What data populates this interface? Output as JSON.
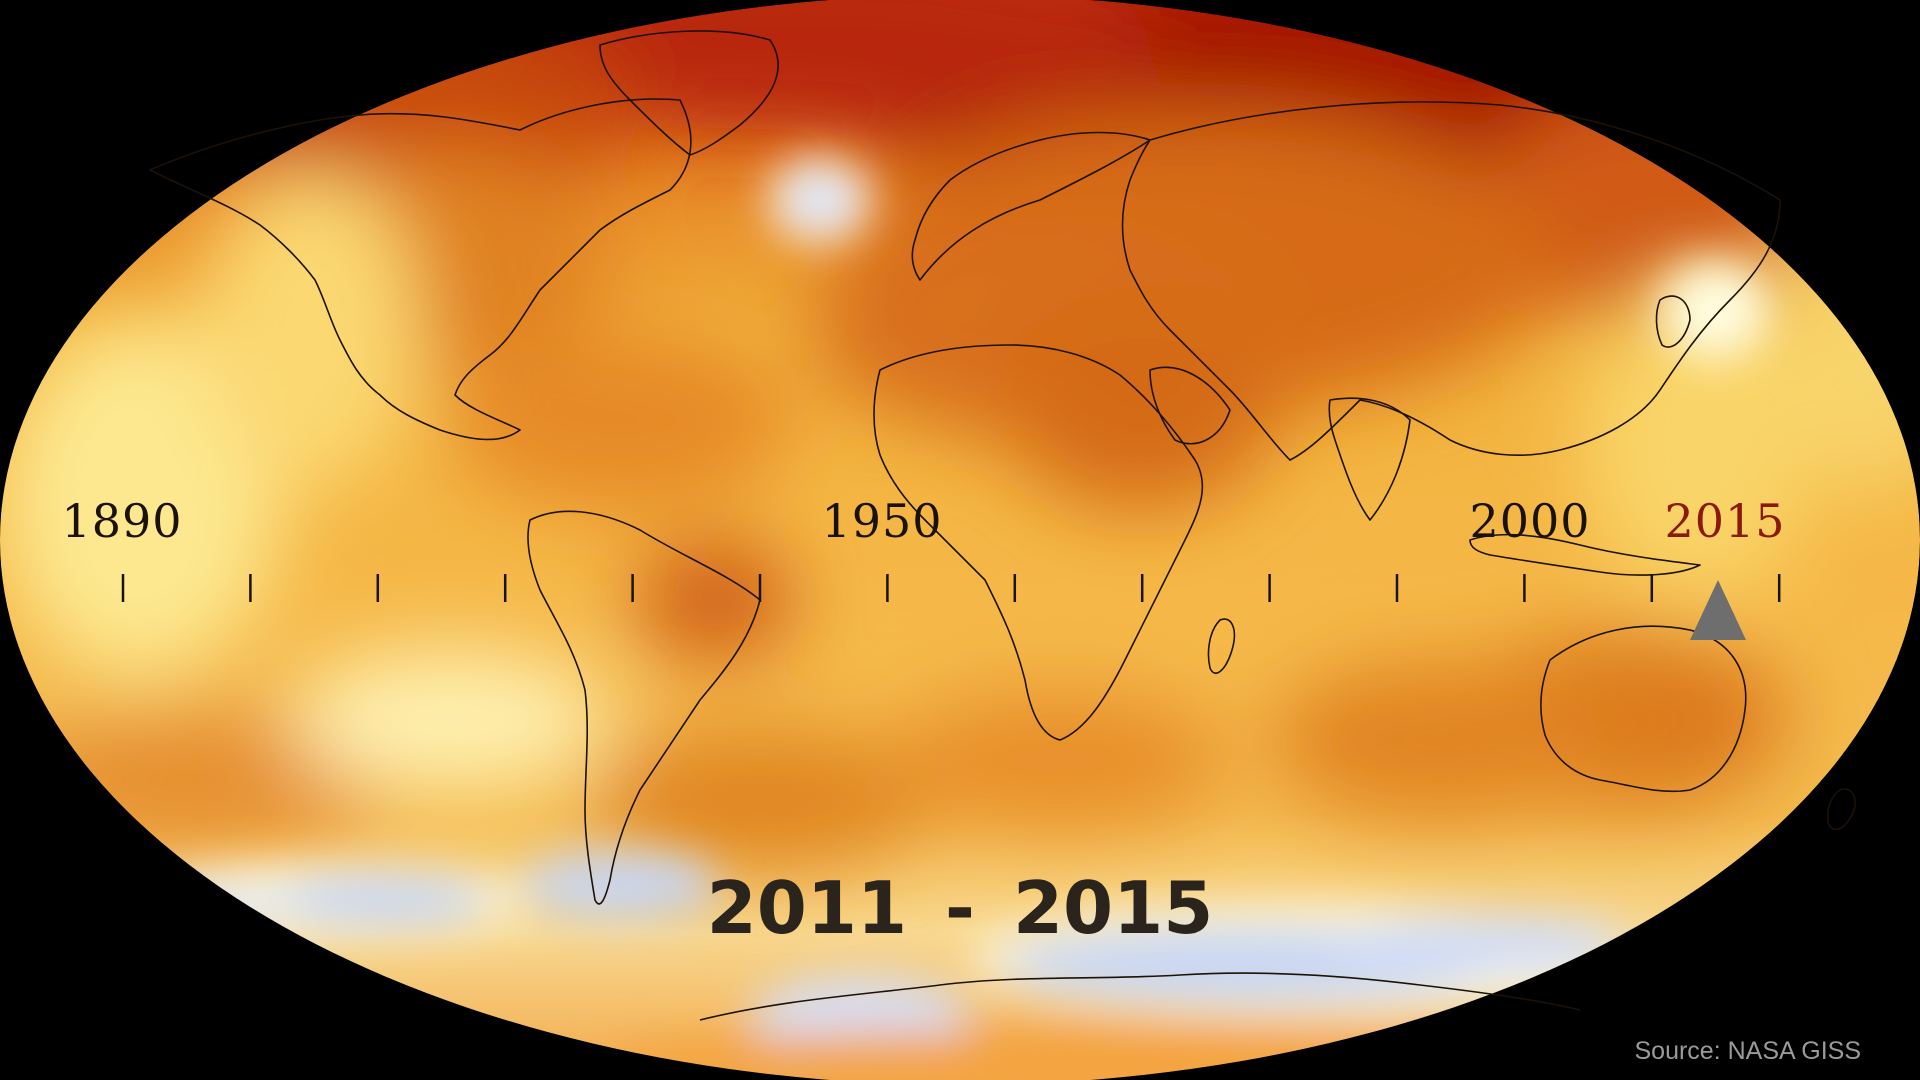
{
  "map": {
    "projection": "Robinson",
    "variable": "surface temperature anomaly",
    "colors": {
      "background": "#000000",
      "cool": "#c8d6f2",
      "neutral": "#fff2a0",
      "warm_light": "#f7c748",
      "warm": "#e89028",
      "warm_strong": "#d26012",
      "hot": "#a51800",
      "coastline": "#1c1206"
    }
  },
  "timeline": {
    "labels": [
      {
        "year": "1890",
        "highlight": false
      },
      {
        "year": "1950",
        "highlight": false
      },
      {
        "year": "2000",
        "highlight": false
      },
      {
        "year": "2015",
        "highlight": true
      }
    ],
    "tick_count": 14,
    "current_year": "2015",
    "label_color": "#1a1208",
    "highlight_color": "#8b1a0e",
    "marker_color": "#6e6e6e"
  },
  "period": {
    "start": "2011",
    "separator": "-",
    "end": "2015"
  },
  "source": "Source: NASA GISS"
}
